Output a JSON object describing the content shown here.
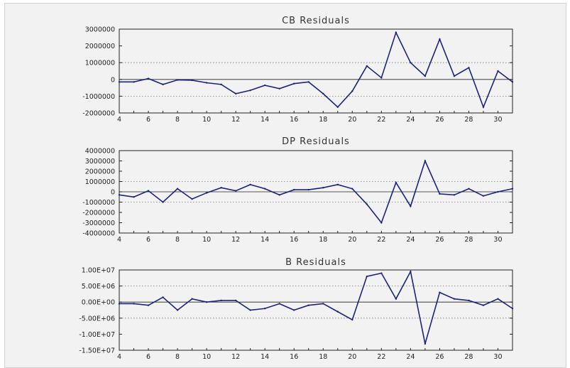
{
  "chart_data": [
    {
      "type": "line",
      "title": "CB Residuals",
      "x": [
        4,
        5,
        6,
        7,
        8,
        9,
        10,
        11,
        12,
        13,
        14,
        15,
        16,
        17,
        18,
        19,
        20,
        21,
        22,
        23,
        24,
        25,
        26,
        27,
        28,
        29,
        30,
        31
      ],
      "series": [
        {
          "values": [
            -150000,
            -150000,
            50000,
            -300000,
            -30000,
            -50000,
            -200000,
            -300000,
            -850000,
            -650000,
            -350000,
            -550000,
            -250000,
            -150000,
            -850000,
            -1650000,
            -700000,
            800000,
            100000,
            2800000,
            1000000,
            200000,
            2400000,
            200000,
            700000,
            -1650000,
            500000,
            -150000
          ]
        }
      ],
      "ylim": [
        -2000000,
        3000000
      ],
      "yticks": [
        3000000,
        2000000,
        1000000,
        0,
        -1000000,
        -2000000
      ],
      "ytick_labels": [
        "3000000",
        "2000000",
        "1000000",
        "0",
        "-1000000",
        "-2000000"
      ],
      "xticks": [
        4,
        6,
        8,
        10,
        12,
        14,
        16,
        18,
        20,
        22,
        24,
        26,
        28,
        30
      ],
      "xtick_labels": [
        "4",
        "6",
        "8",
        "10",
        "12",
        "14",
        "16",
        "18",
        "20",
        "22",
        "24",
        "26",
        "28",
        "30"
      ],
      "xlim": [
        4,
        31
      ],
      "grid": "dotted at ±1000000"
    },
    {
      "type": "line",
      "title": "DP Residuals",
      "x": [
        4,
        5,
        6,
        7,
        8,
        9,
        10,
        11,
        12,
        13,
        14,
        15,
        16,
        17,
        18,
        19,
        20,
        21,
        22,
        23,
        24,
        25,
        26,
        27,
        28,
        29,
        30,
        31
      ],
      "series": [
        {
          "values": [
            -300000,
            -500000,
            100000,
            -1000000,
            300000,
            -700000,
            -100000,
            400000,
            100000,
            700000,
            300000,
            -300000,
            200000,
            200000,
            400000,
            700000,
            300000,
            -1200000,
            -3000000,
            900000,
            -1400000,
            3000000,
            -200000,
            -300000,
            300000,
            -400000,
            0,
            300000
          ]
        }
      ],
      "ylim": [
        -4000000,
        4000000
      ],
      "yticks": [
        4000000,
        3000000,
        2000000,
        1000000,
        0,
        -1000000,
        -2000000,
        -3000000,
        -4000000
      ],
      "ytick_labels": [
        "4000000",
        "3000000",
        "2000000",
        "1000000",
        "0",
        "-1000000",
        "-2000000",
        "-3000000",
        "-4000000"
      ],
      "xticks": [
        4,
        6,
        8,
        10,
        12,
        14,
        16,
        18,
        20,
        22,
        24,
        26,
        28,
        30
      ],
      "xtick_labels": [
        "4",
        "6",
        "8",
        "10",
        "12",
        "14",
        "16",
        "18",
        "20",
        "22",
        "24",
        "26",
        "28",
        "30"
      ],
      "xlim": [
        4,
        31
      ],
      "grid": "dotted at ±1000000"
    },
    {
      "type": "line",
      "title": "B Residuals",
      "x": [
        4,
        5,
        6,
        7,
        8,
        9,
        10,
        11,
        12,
        13,
        14,
        15,
        16,
        17,
        18,
        19,
        20,
        21,
        22,
        23,
        24,
        25,
        26,
        27,
        28,
        29,
        30,
        31
      ],
      "series": [
        {
          "values": [
            -500000,
            -500000,
            -1000000,
            1500000,
            -2500000,
            1000000,
            0,
            500000,
            500000,
            -2500000,
            -2000000,
            -500000,
            -2500000,
            -1000000,
            -500000,
            -3000000,
            -5500000,
            8000000,
            9000000,
            1000000,
            9500000,
            -13000000,
            3000000,
            1000000,
            500000,
            -1000000,
            1000000,
            -2000000
          ]
        }
      ],
      "ylim": [
        -15000000,
        10000000
      ],
      "yticks": [
        10000000,
        5000000,
        0,
        -5000000,
        -10000000,
        -15000000
      ],
      "ytick_labels": [
        "1.00E+07",
        "5.00E+06",
        "0.00E+00",
        "-5.00E+06",
        "-1.00E+07",
        "-1.50E+07"
      ],
      "xticks": [
        4,
        6,
        8,
        10,
        12,
        14,
        16,
        18,
        20,
        22,
        24,
        26,
        28,
        30
      ],
      "xtick_labels": [
        "4",
        "6",
        "8",
        "10",
        "12",
        "14",
        "16",
        "18",
        "20",
        "22",
        "24",
        "26",
        "28",
        "30"
      ],
      "xlim": [
        4,
        31
      ],
      "grid": "dotted at ±5000000"
    }
  ],
  "colors": {
    "line": "#1a237e",
    "axis": "#222222",
    "grid": "#777777",
    "background": "#f2f2f2"
  }
}
